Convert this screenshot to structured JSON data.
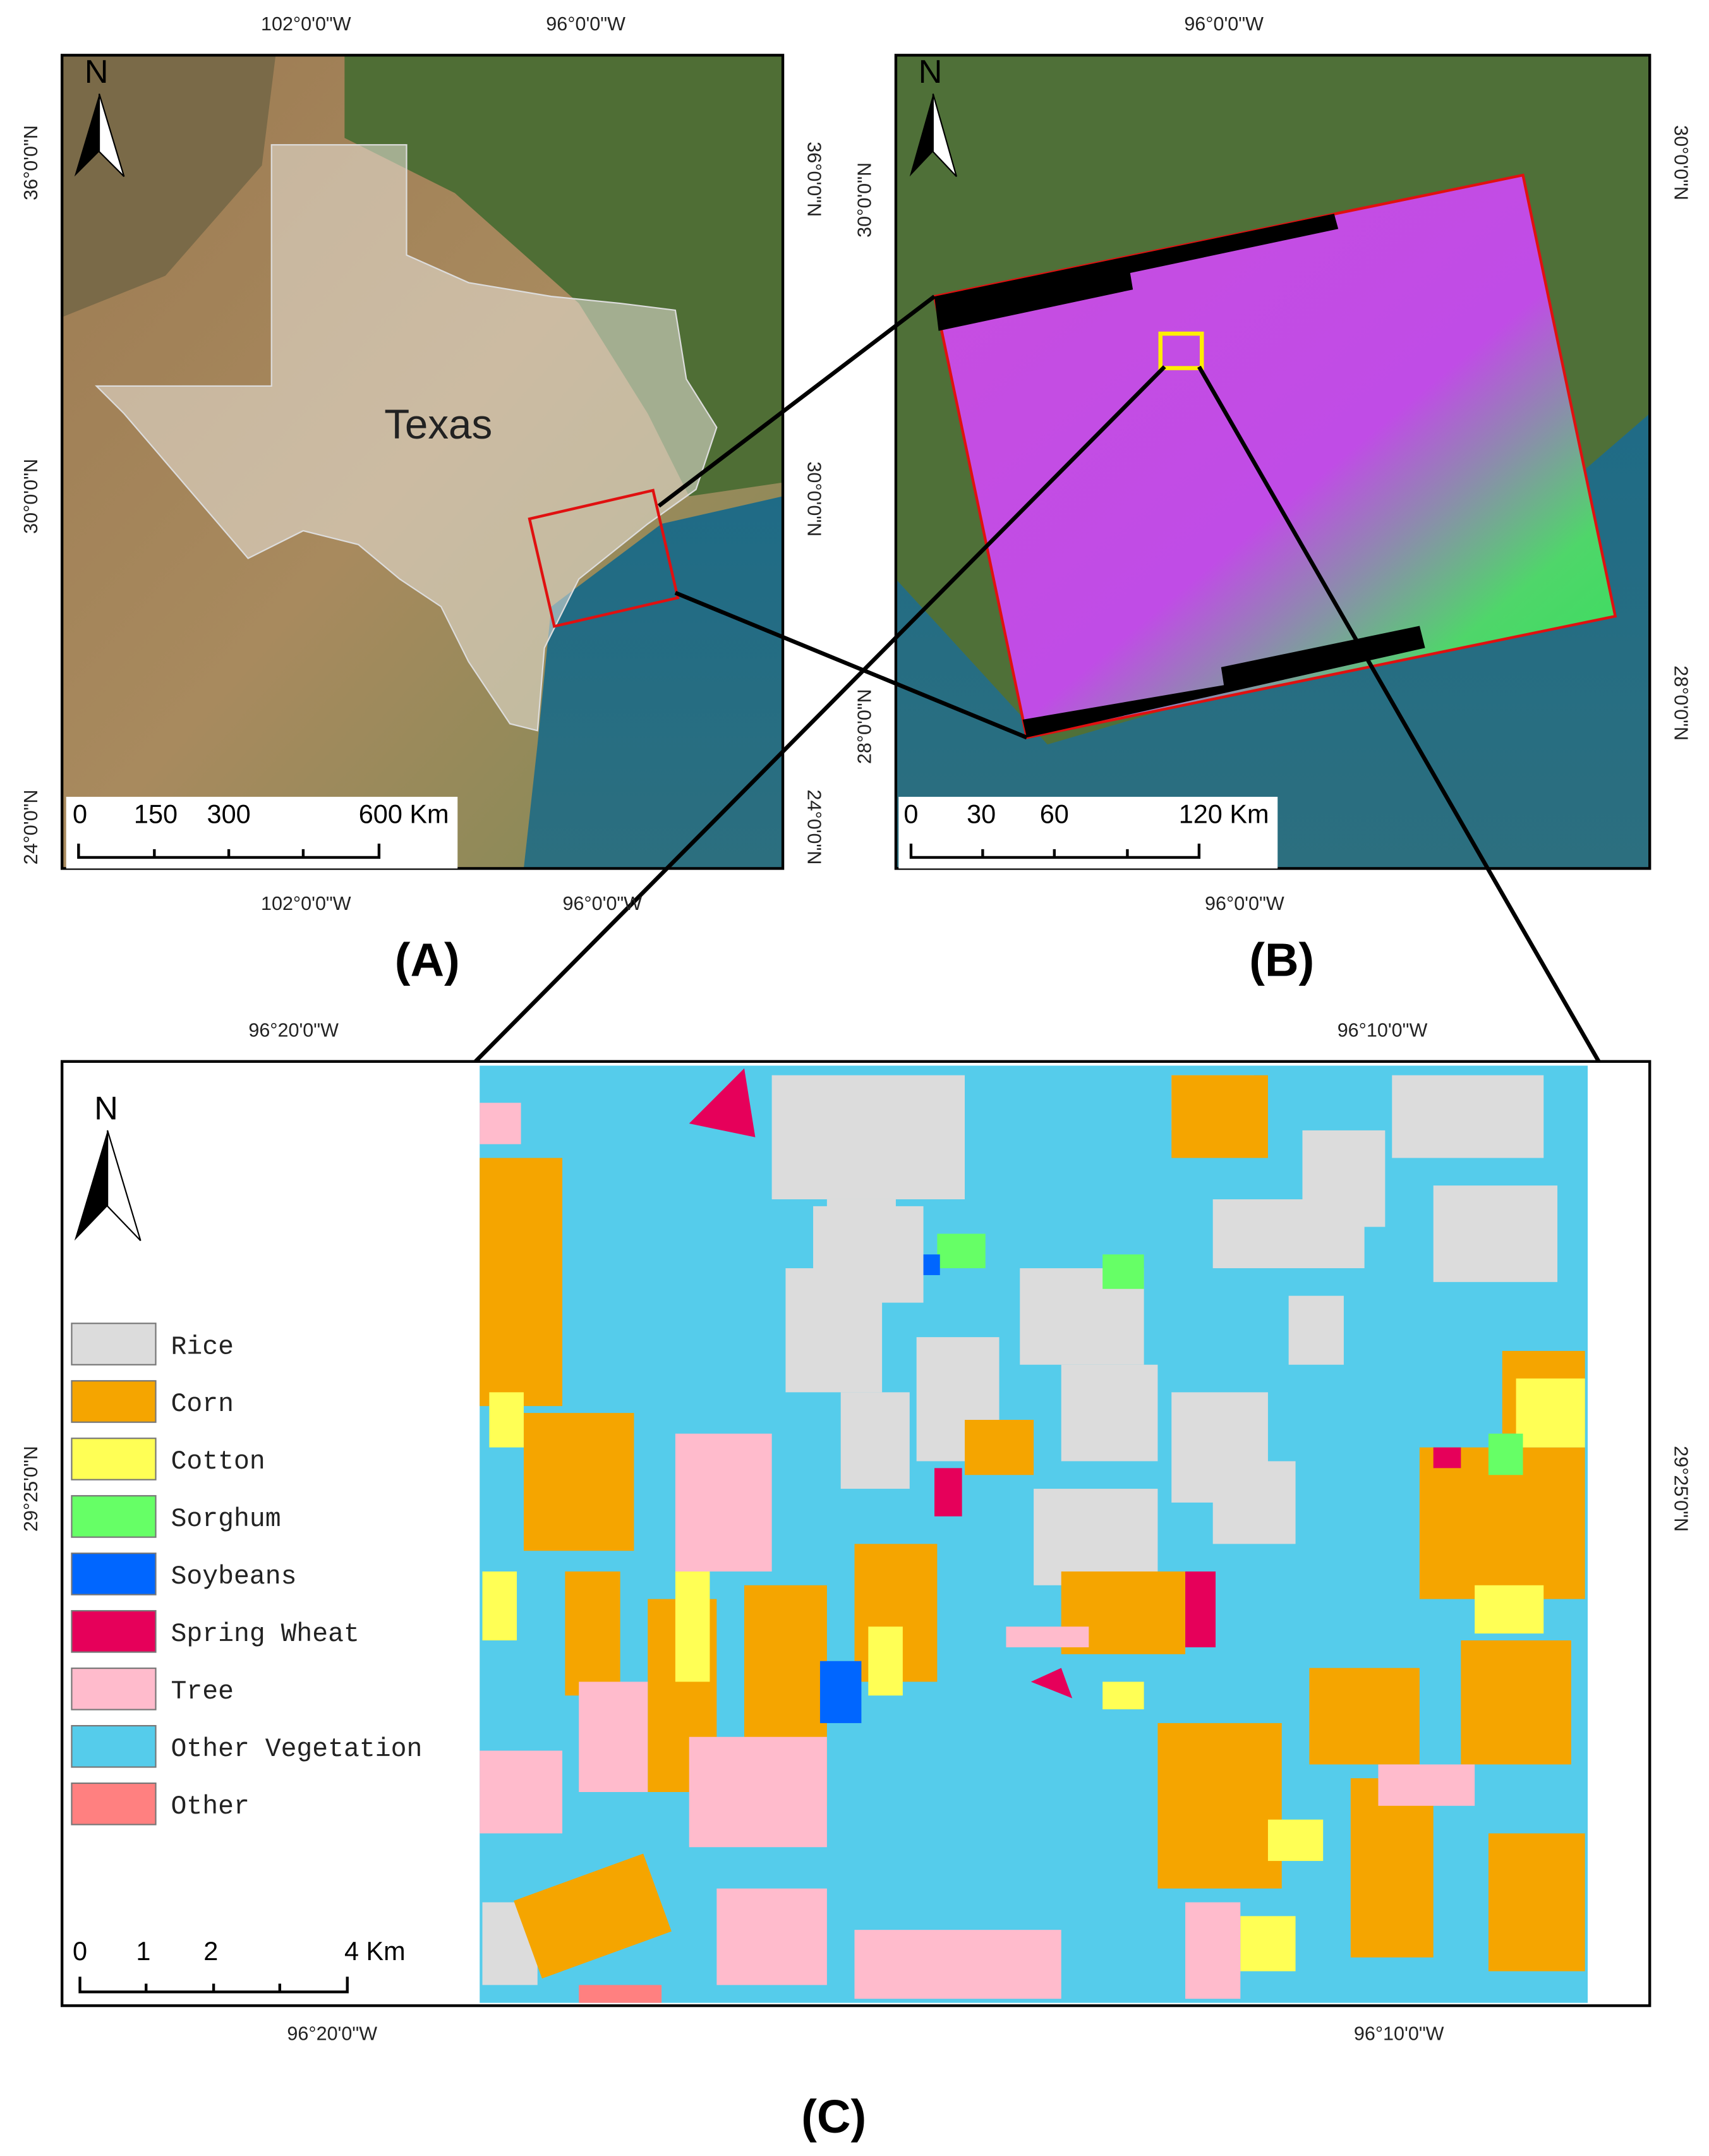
{
  "panels": [
    {
      "label": "(A)",
      "north": "N",
      "annotation": "Texas",
      "top_ticks": [
        "102°0'0\"W",
        "96°0'0\"W"
      ],
      "bottom_ticks": [
        "102°0'0\"W",
        "96°0'0\"W"
      ],
      "left_ticks": [
        "36°0'0\"N",
        "30°0'0\"N",
        "24°0'0\"N"
      ],
      "right_ticks": [
        "36°0'0\"N",
        "30°0'0\"N",
        "24°0'0\"N"
      ],
      "scale_bar": [
        "0",
        "150",
        "300",
        "600 Km"
      ]
    },
    {
      "label": "(B)",
      "north": "N",
      "top_ticks": [
        "96°0'0\"W"
      ],
      "bottom_ticks": [
        "96°0'0\"W"
      ],
      "left_ticks": [
        "30°0'0\"N",
        "28°0'0\"N"
      ],
      "right_ticks": [
        "30°0'0\"N",
        "28°0'0\"N"
      ],
      "scale_bar": [
        "0",
        "30",
        "60",
        "120 Km"
      ]
    },
    {
      "label": "(C)",
      "north": "N",
      "top_ticks": [
        "96°20'0\"W",
        "96°10'0\"W"
      ],
      "bottom_ticks": [
        "96°20'0\"W",
        "96°10'0\"W"
      ],
      "left_ticks": [
        "29°25'0\"N"
      ],
      "right_ticks": [
        "29°25'0\"N"
      ],
      "scale_bar": [
        "0",
        "1",
        "2",
        "4 Km"
      ]
    }
  ],
  "legend": [
    {
      "label": "Rice",
      "color": "#dcdcdc"
    },
    {
      "label": "Corn",
      "color": "#f5a500"
    },
    {
      "label": "Cotton",
      "color": "#ffff55"
    },
    {
      "label": "Sorghum",
      "color": "#66ff66"
    },
    {
      "label": "Soybeans",
      "color": "#0066ff"
    },
    {
      "label": "Spring Wheat",
      "color": "#e6005a"
    },
    {
      "label": "Tree",
      "color": "#ffbbcc"
    },
    {
      "label": "Other Vegetation",
      "color": "#55cceb"
    },
    {
      "label": "Other",
      "color": "#ff8080"
    }
  ]
}
